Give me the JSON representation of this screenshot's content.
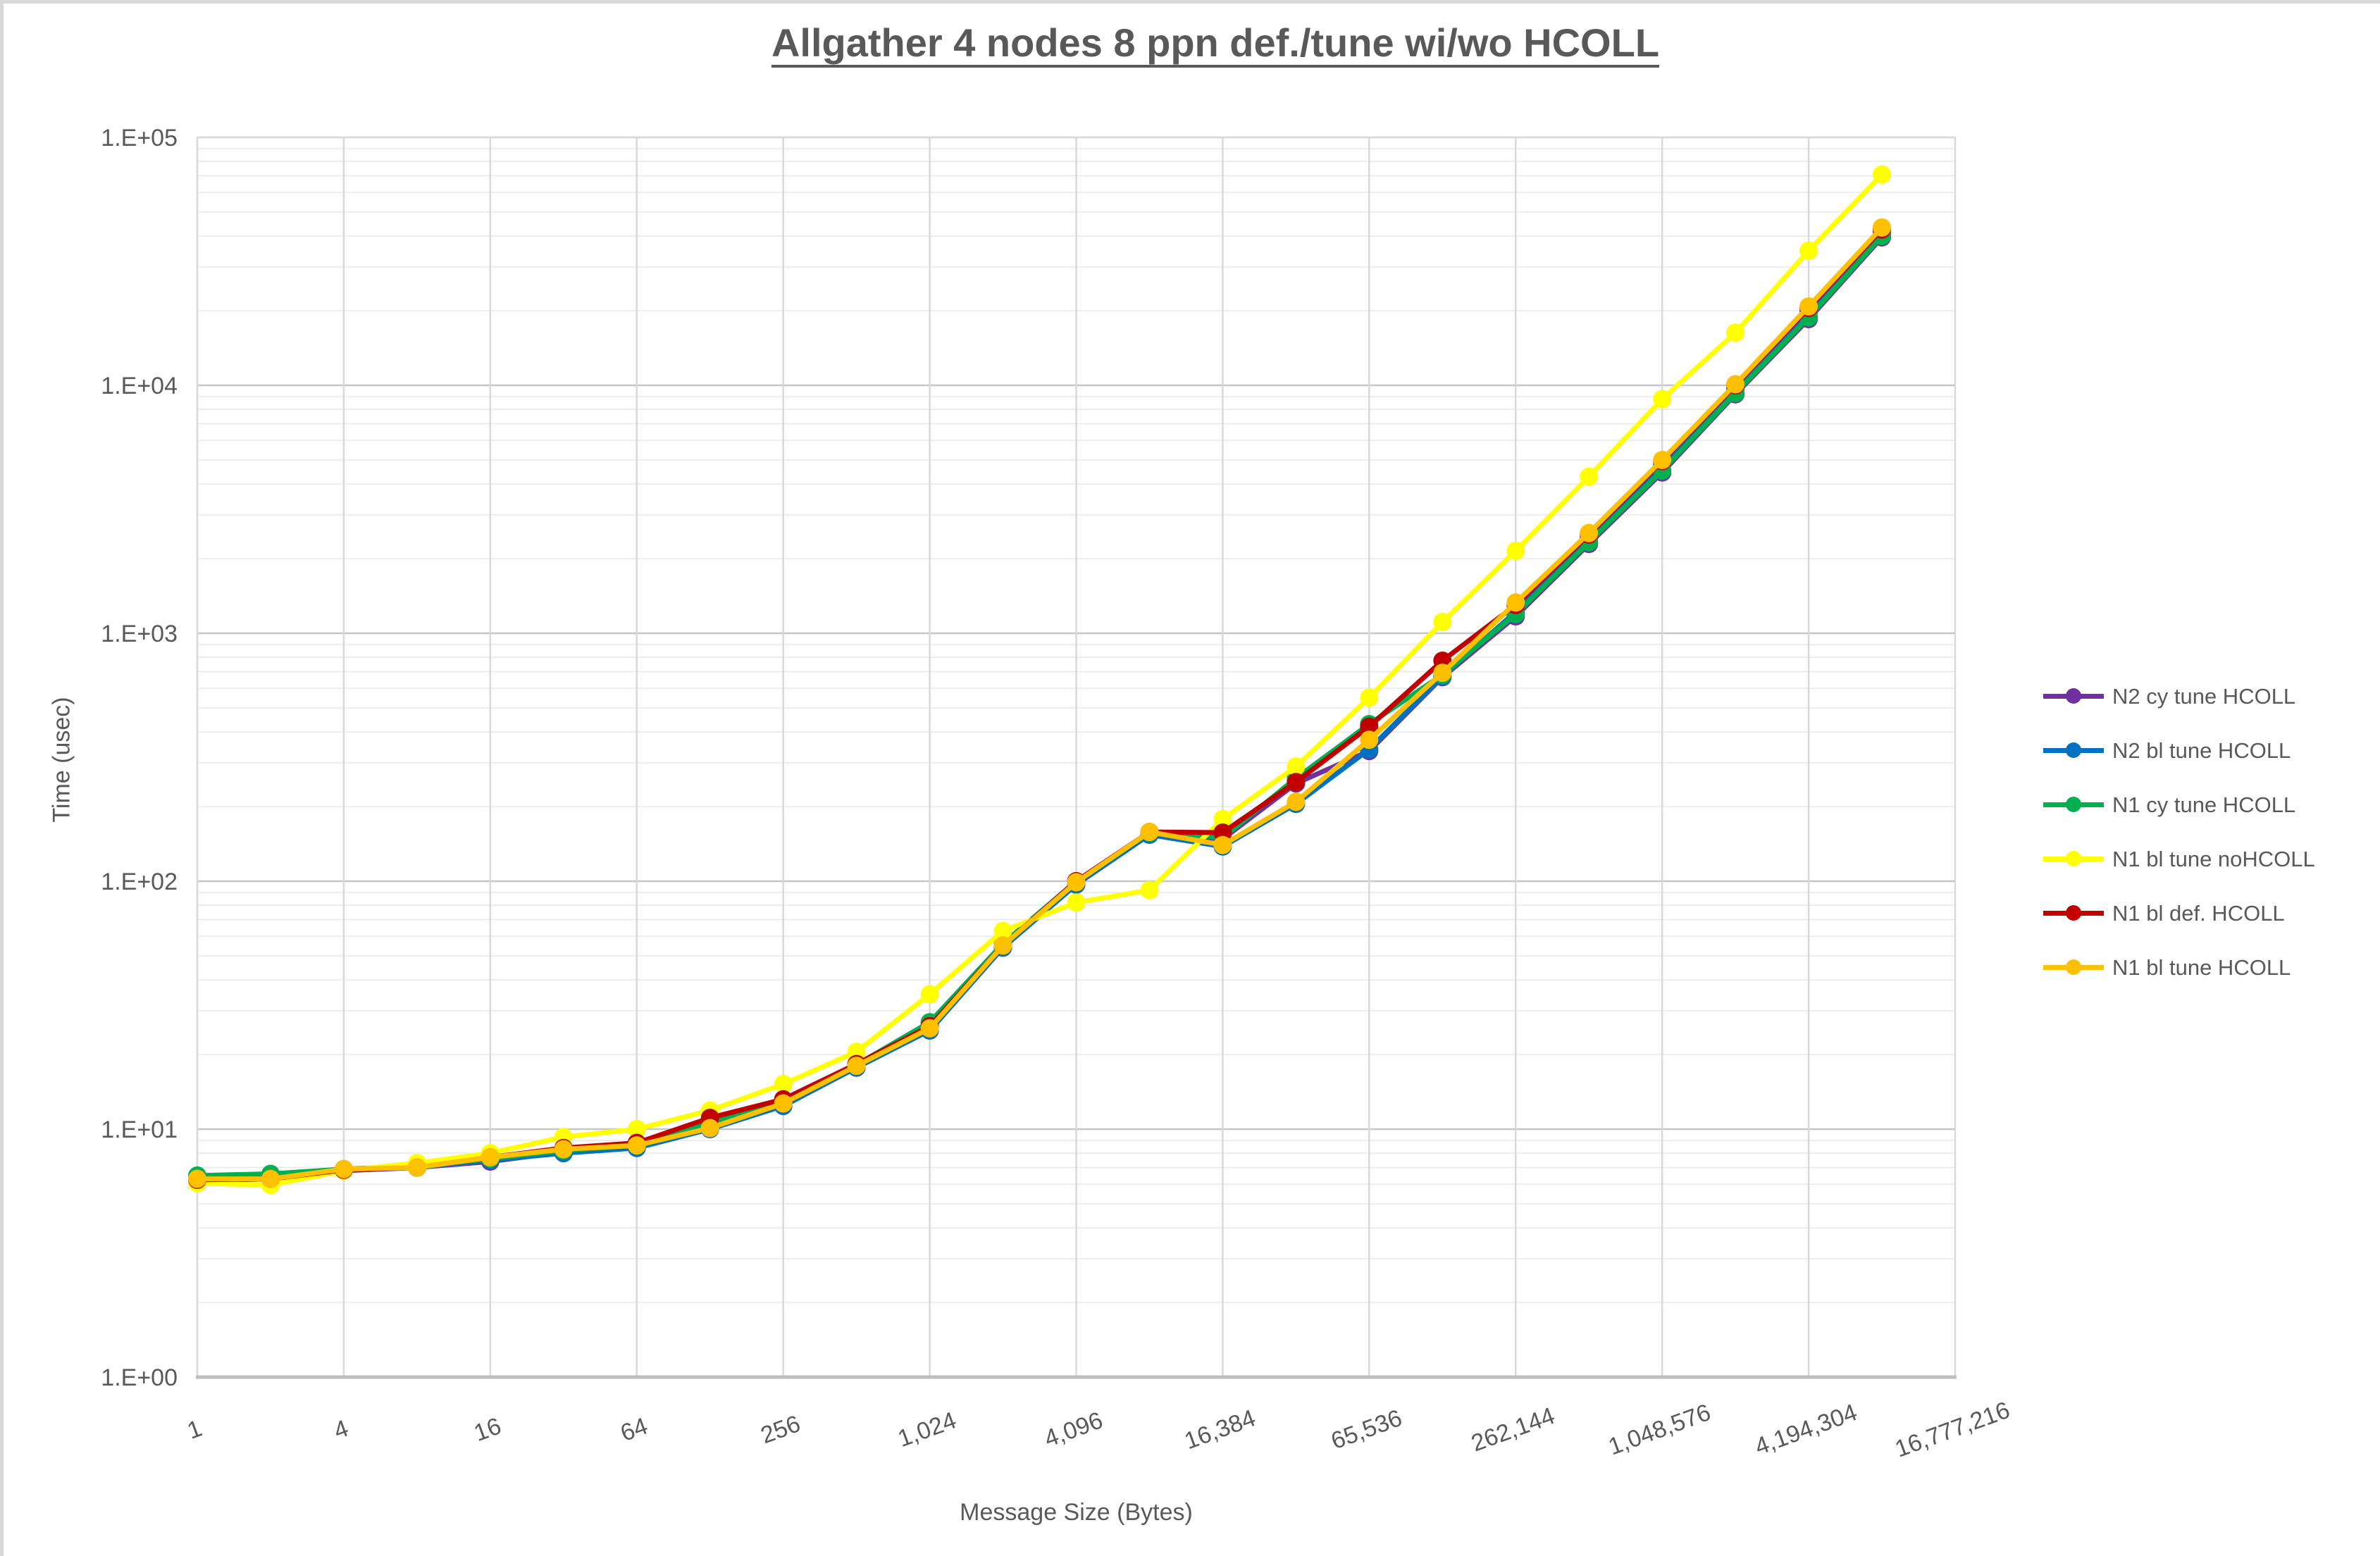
{
  "title": "Allgather 4 nodes 8 ppn def./tune wi/wo HCOLL",
  "chart_data": {
    "type": "line",
    "title": "Allgather 4 nodes 8 ppn def./tune wi/wo HCOLL",
    "xlabel": "Message Size (Bytes)",
    "ylabel": "Time (usec)",
    "legend_position": "right",
    "grid": true,
    "x_axis": {
      "scale": "log",
      "min": 1,
      "max": 16777216,
      "tick_values": [
        1,
        4,
        16,
        64,
        256,
        1024,
        4096,
        16384,
        65536,
        262144,
        1048576,
        4194304,
        16777216
      ],
      "tick_labels": [
        "1",
        "4",
        "16",
        "64",
        "256",
        "1,024",
        "4,096",
        "16,384",
        "65,536",
        "262,144",
        "1,048,576",
        "4,194,304",
        "16,777,216"
      ]
    },
    "y_axis": {
      "scale": "log",
      "min": 1,
      "max": 100000,
      "tick_values": [
        1,
        10,
        100,
        1000,
        10000,
        100000
      ],
      "tick_labels": [
        "1.E+00",
        "1.E+01",
        "1.E+02",
        "1.E+03",
        "1.E+04",
        "1.E+05"
      ]
    },
    "x": [
      1,
      2,
      4,
      8,
      16,
      32,
      64,
      128,
      256,
      512,
      1024,
      2048,
      4096,
      8192,
      16384,
      32768,
      65536,
      131072,
      262144,
      524288,
      1048576,
      2097152,
      4194304,
      8388608
    ],
    "series": [
      {
        "name": "N2 cy tune HCOLL",
        "color": "#7030A0",
        "values": [
          6.2,
          6.3,
          6.8,
          7.0,
          7.4,
          8.1,
          8.5,
          10.3,
          12.5,
          17.8,
          25.0,
          54,
          97,
          156,
          148,
          248,
          335,
          665,
          1170,
          2290,
          4450,
          9200,
          18500,
          39500
        ]
      },
      {
        "name": "N2 bl tune HCOLL",
        "color": "#0070C0",
        "values": [
          6.2,
          6.3,
          6.85,
          7.0,
          7.5,
          8.0,
          8.4,
          10.0,
          12.4,
          17.7,
          25.0,
          54,
          97,
          154,
          138,
          205,
          340,
          670,
          1220,
          2420,
          4800,
          9700,
          19800,
          41000
        ]
      },
      {
        "name": "N1 cy tune HCOLL",
        "color": "#00B050",
        "values": [
          6.5,
          6.6,
          6.9,
          7.1,
          7.6,
          8.2,
          8.6,
          10.6,
          12.9,
          18.2,
          27.0,
          56,
          100,
          157,
          150,
          260,
          430,
          680,
          1195,
          2330,
          4530,
          9300,
          18800,
          40000
        ]
      },
      {
        "name": "N1 bl tune noHCOLL",
        "color": "#FFFF00",
        "values": [
          6.05,
          5.95,
          6.8,
          7.3,
          8.0,
          9.3,
          10.0,
          11.9,
          15.2,
          20.5,
          35,
          63,
          82,
          92,
          178,
          290,
          550,
          1110,
          2150,
          4280,
          8800,
          16300,
          34900,
          70800
        ]
      },
      {
        "name": "N1 bl def. HCOLL",
        "color": "#C00000",
        "values": [
          6.25,
          6.3,
          6.85,
          7.0,
          7.7,
          8.4,
          8.8,
          11.1,
          13.2,
          18.3,
          26,
          55,
          100,
          158,
          157,
          251,
          420,
          775,
          1300,
          2500,
          4950,
          10000,
          20500,
          42500
        ]
      },
      {
        "name": "N1 bl tune HCOLL",
        "color": "#FFC000",
        "values": [
          6.3,
          6.3,
          6.9,
          7.0,
          7.7,
          8.3,
          8.6,
          10.1,
          12.7,
          18.0,
          25.5,
          55,
          99,
          158,
          140,
          209,
          372,
          693,
          1330,
          2535,
          5000,
          10100,
          20800,
          43300
        ]
      }
    ]
  },
  "theme": {
    "text_color": "#595959",
    "grid_minor": "#E8E8E8",
    "grid_major": "#C6C6C6",
    "grid_vertical": "#D9D9D9",
    "axis_line": "#BFBFBF",
    "frame": "#D9D9D9"
  }
}
